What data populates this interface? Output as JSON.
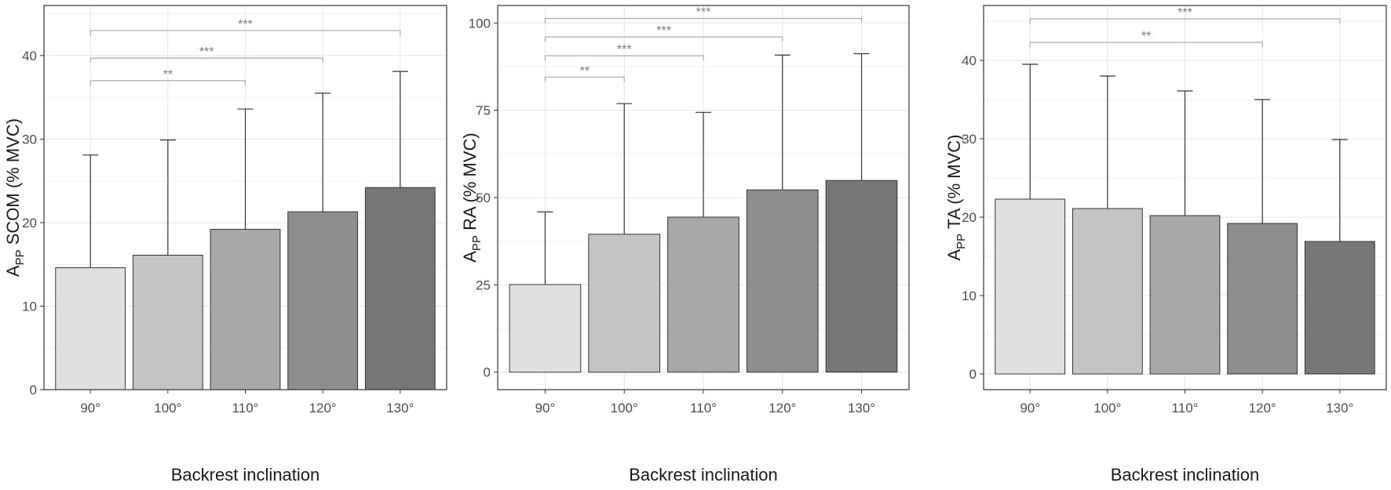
{
  "chart_data": [
    {
      "type": "bar",
      "categories": [
        "90°",
        "100°",
        "110°",
        "120°",
        "130°"
      ],
      "values": [
        14.6,
        16.1,
        19.2,
        21.3,
        24.2
      ],
      "error_upper": [
        28.1,
        29.9,
        33.6,
        35.5,
        38.1
      ],
      "colors": [
        "#e0e0e0",
        "#c4c4c4",
        "#a8a8a8",
        "#8e8e8e",
        "#777777"
      ],
      "xlabel": "Backrest inclination",
      "ylabel": {
        "main": "A",
        "sub": "PP",
        "rest": " SCOM (% MVC)"
      },
      "ylim": [
        0,
        46
      ],
      "yticks": [
        0,
        10,
        20,
        30,
        40
      ],
      "grid": true,
      "significance": [
        {
          "from": 0,
          "to": 2,
          "y": 37.0,
          "label": "**"
        },
        {
          "from": 0,
          "to": 3,
          "y": 39.7,
          "label": "***"
        },
        {
          "from": 0,
          "to": 4,
          "y": 43.0,
          "label": "***"
        }
      ]
    },
    {
      "type": "bar",
      "categories": [
        "90°",
        "100°",
        "110°",
        "120°",
        "130°"
      ],
      "values": [
        25.1,
        39.5,
        44.4,
        52.2,
        54.9
      ],
      "error_upper": [
        45.9,
        76.9,
        74.4,
        90.8,
        91.2
      ],
      "colors": [
        "#e0e0e0",
        "#c4c4c4",
        "#a8a8a8",
        "#8e8e8e",
        "#777777"
      ],
      "xlabel": "Backrest inclination",
      "ylabel": {
        "main": "A",
        "sub": "PP",
        "rest": " RA (% MVC)"
      },
      "ylim": [
        -5,
        105
      ],
      "yticks": [
        0,
        25,
        50,
        75,
        100
      ],
      "grid": true,
      "significance": [
        {
          "from": 0,
          "to": 1,
          "y": 84.5,
          "label": "**"
        },
        {
          "from": 0,
          "to": 2,
          "y": 90.6,
          "label": "***"
        },
        {
          "from": 0,
          "to": 3,
          "y": 96.0,
          "label": "***"
        },
        {
          "from": 0,
          "to": 4,
          "y": 101.3,
          "label": "***"
        }
      ]
    },
    {
      "type": "bar",
      "categories": [
        "90°",
        "100°",
        "110°",
        "120°",
        "130°"
      ],
      "values": [
        22.3,
        21.1,
        20.2,
        19.2,
        16.9
      ],
      "error_upper": [
        39.5,
        38.0,
        36.1,
        35.0,
        29.9
      ],
      "colors": [
        "#e0e0e0",
        "#c4c4c4",
        "#a8a8a8",
        "#8e8e8e",
        "#777777"
      ],
      "xlabel": "Backrest inclination",
      "ylabel": {
        "main": "A",
        "sub": "PP",
        "rest": " TA (% MVC)"
      },
      "ylim": [
        -2,
        47
      ],
      "yticks": [
        0,
        10,
        20,
        30,
        40
      ],
      "grid": true,
      "significance": [
        {
          "from": 0,
          "to": 3,
          "y": 42.3,
          "label": "**"
        },
        {
          "from": 0,
          "to": 4,
          "y": 45.3,
          "label": "***"
        }
      ]
    }
  ]
}
